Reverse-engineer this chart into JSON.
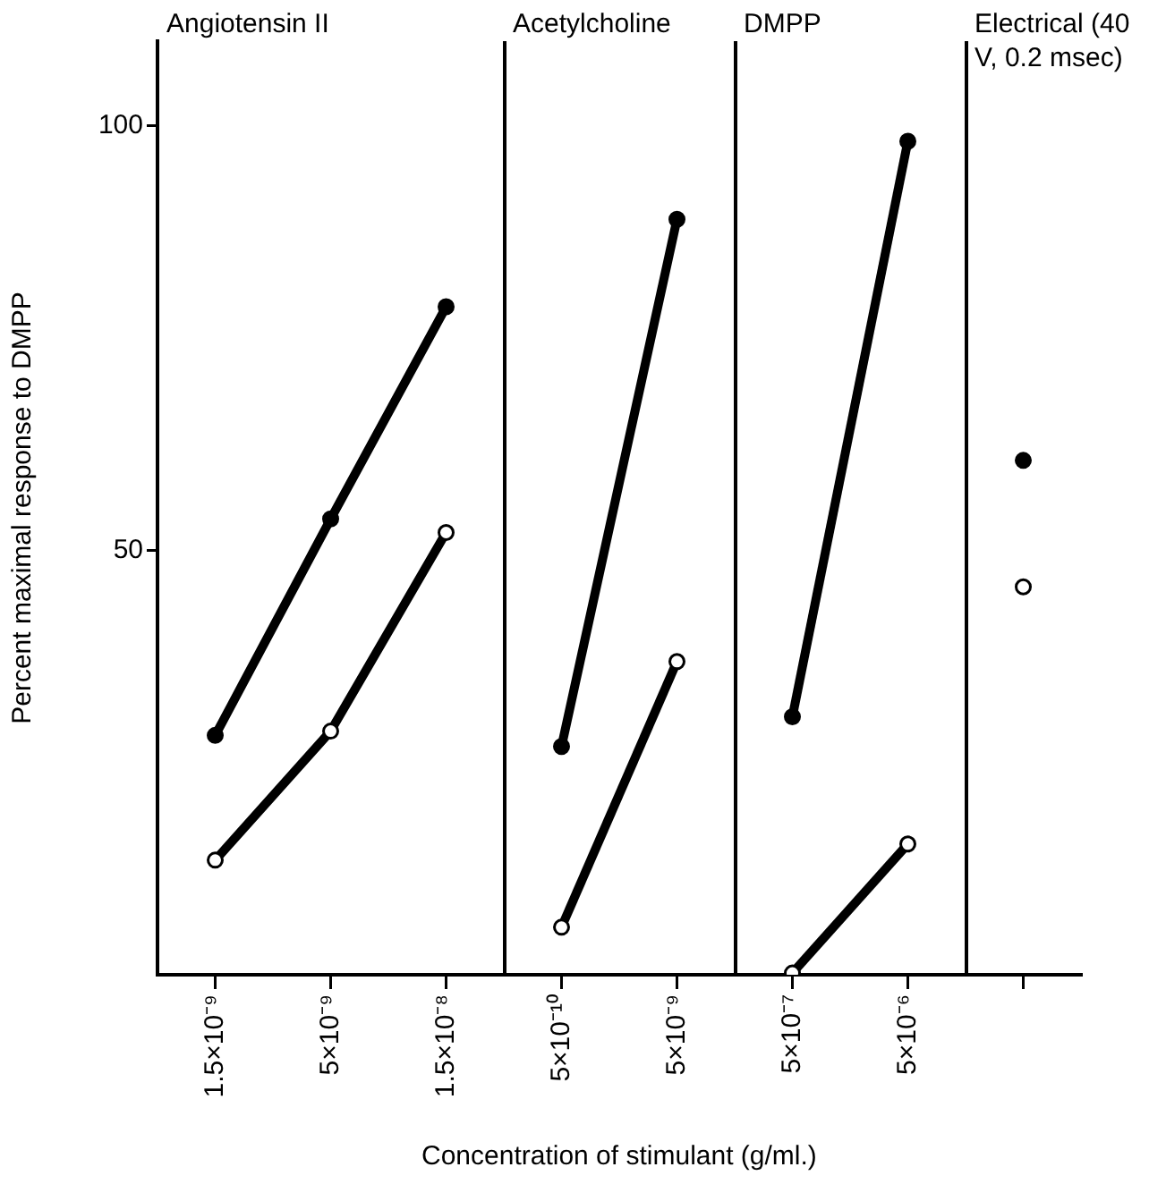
{
  "chart_data": {
    "type": "line",
    "ylabel": "Percent maximal response to DMPP",
    "xlabel": "Concentration of stimulant (g/ml.)",
    "categories": [
      "1.5×10⁻⁹",
      "5×10⁻⁹",
      "1.5×10⁻⁸",
      "5×10⁻¹⁰",
      "5×10⁻⁹",
      "5×10⁻⁷",
      "5×10⁻⁶",
      null
    ],
    "series": [
      {
        "color": "#000000",
        "values": [
          28.2,
          53.7,
          78.7,
          null,
          null,
          null,
          null,
          null
        ]
      },
      {
        "color": "#000000",
        "values": [
          13.5,
          28.7,
          52.1,
          null,
          null,
          null,
          null,
          null
        ]
      },
      {
        "color": "#000000",
        "values": [
          null,
          null,
          null,
          26.9,
          89.0,
          null,
          null,
          null
        ]
      },
      {
        "color": "#000000",
        "values": [
          null,
          null,
          null,
          5.6,
          36.9,
          null,
          null,
          null
        ]
      },
      {
        "color": "#000000",
        "values": [
          null,
          null,
          null,
          null,
          null,
          30.4,
          98.2,
          null
        ]
      },
      {
        "color": "#000000",
        "values": [
          null,
          null,
          null,
          null,
          null,
          0.2,
          15.4,
          null
        ]
      },
      {
        "type": "scatter",
        "color": "#000000",
        "values": [
          null,
          null,
          null,
          null,
          null,
          null,
          null,
          60.6
        ]
      },
      {
        "type": "scatter",
        "color": "#000000",
        "values": [
          null,
          null,
          null,
          null,
          null,
          null,
          null,
          45.7
        ]
      }
    ],
    "annotations": [
      "Angiotensin II",
      "Acetylcholine",
      "DMPP",
      "Electrical (40 V, 0.2 msec)"
    ],
    "ylim": [
      0,
      110
    ],
    "yticks": [
      50,
      100
    ],
    "marker": "circle"
  }
}
